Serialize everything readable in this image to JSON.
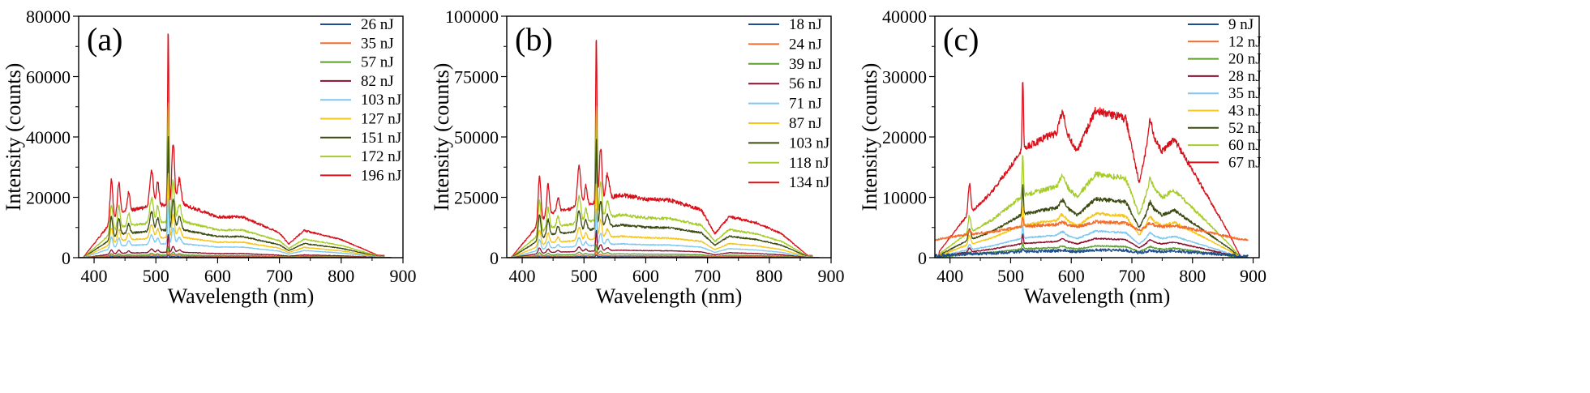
{
  "chart_data": [
    {
      "type": "line",
      "panel_label": "(a)",
      "xlabel": "Wavelength (nm)",
      "ylabel": "Intensity (counts)",
      "xlim": [
        375,
        900
      ],
      "ylim": [
        0,
        80000
      ],
      "xticks": [
        "400",
        "500",
        "600",
        "700",
        "800",
        "900"
      ],
      "yticks": [
        "0",
        "20000",
        "40000",
        "60000",
        "80000"
      ],
      "legend_position": "top-right",
      "series": [
        {
          "name": "26 nJ",
          "color": "#1f4e8c",
          "scale": 0.012,
          "noise": 0.3
        },
        {
          "name": "35 nJ",
          "color": "#f26c2c",
          "scale": 0.03,
          "noise": 0.3
        },
        {
          "name": "57 nJ",
          "color": "#5c9e2e",
          "scale": 0.05,
          "noise": 0.3
        },
        {
          "name": "82 nJ",
          "color": "#8b0f2e",
          "scale": 0.1,
          "noise": 0.3
        },
        {
          "name": "103 nJ",
          "color": "#7ec8f0",
          "scale": 0.26,
          "noise": 0.3
        },
        {
          "name": "127 nJ",
          "color": "#f5c518",
          "scale": 0.38,
          "noise": 0.3
        },
        {
          "name": "151 nJ",
          "color": "#3b4a10",
          "scale": 0.52,
          "noise": 0.3
        },
        {
          "name": "172 nJ",
          "color": "#a6cc2a",
          "scale": 0.68,
          "noise": 0.3
        },
        {
          "name": "196 nJ",
          "color": "#d9101a",
          "scale": 1.0,
          "noise": 0.3
        }
      ],
      "profile": {
        "start": 382,
        "end": 870,
        "base": 15000,
        "rise_end": 440,
        "segments": [
          [
            440,
            1.0
          ],
          [
            500,
            1.15
          ],
          [
            540,
            1.2
          ],
          [
            600,
            0.9
          ],
          [
            640,
            0.9
          ],
          [
            700,
            0.55
          ],
          [
            715,
            0.3
          ],
          [
            740,
            0.6
          ],
          [
            800,
            0.4
          ],
          [
            860,
            0.05
          ]
        ],
        "peaks": [
          [
            428,
            14000,
            3
          ],
          [
            440,
            10000,
            3
          ],
          [
            456,
            6000,
            3
          ],
          [
            493,
            12000,
            4
          ],
          [
            503,
            8000,
            3
          ],
          [
            520,
            58000,
            1.5
          ],
          [
            528,
            20000,
            3
          ],
          [
            538,
            8000,
            4
          ]
        ]
      }
    },
    {
      "type": "line",
      "panel_label": "(b)",
      "xlabel": "Wavelength (nm)",
      "ylabel": "Intensity (counts)",
      "xlim": [
        375,
        900
      ],
      "ylim": [
        0,
        100000
      ],
      "xticks": [
        "400",
        "500",
        "600",
        "700",
        "800",
        "900"
      ],
      "yticks": [
        "0",
        "25000",
        "50000",
        "75000",
        "100000"
      ],
      "legend_position": "top-right",
      "series": [
        {
          "name": "18 nJ",
          "color": "#1f4e8c",
          "scale": 0.012,
          "noise": 0.3
        },
        {
          "name": "24 nJ",
          "color": "#f26c2c",
          "scale": 0.03,
          "noise": 0.3
        },
        {
          "name": "39 nJ",
          "color": "#5c9e2e",
          "scale": 0.06,
          "noise": 0.3
        },
        {
          "name": "56 nJ",
          "color": "#8b0f2e",
          "scale": 0.12,
          "noise": 0.3
        },
        {
          "name": "71 nJ",
          "color": "#7ec8f0",
          "scale": 0.22,
          "noise": 0.3
        },
        {
          "name": "87 nJ",
          "color": "#f5c518",
          "scale": 0.34,
          "noise": 0.3
        },
        {
          "name": "103 nJ",
          "color": "#3b4a10",
          "scale": 0.52,
          "noise": 0.3
        },
        {
          "name": "118 nJ",
          "color": "#a6cc2a",
          "scale": 0.68,
          "noise": 0.3
        },
        {
          "name": "134 nJ",
          "color": "#d9101a",
          "scale": 1.0,
          "noise": 0.3
        }
      ],
      "profile": {
        "start": 382,
        "end": 870,
        "base": 18000,
        "rise_end": 440,
        "segments": [
          [
            440,
            1.0
          ],
          [
            500,
            1.2
          ],
          [
            560,
            1.45
          ],
          [
            600,
            1.35
          ],
          [
            640,
            1.32
          ],
          [
            690,
            1.1
          ],
          [
            712,
            0.55
          ],
          [
            735,
            0.95
          ],
          [
            780,
            0.8
          ],
          [
            820,
            0.55
          ],
          [
            862,
            0.05
          ]
        ],
        "peaks": [
          [
            428,
            20000,
            3
          ],
          [
            442,
            12000,
            3
          ],
          [
            458,
            6000,
            3
          ],
          [
            492,
            16000,
            4
          ],
          [
            503,
            8000,
            3
          ],
          [
            520,
            70000,
            1.5
          ],
          [
            527,
            22000,
            3
          ],
          [
            538,
            10000,
            4
          ]
        ]
      }
    },
    {
      "type": "line",
      "panel_label": "(c)",
      "xlabel": "Wavelength (nm)",
      "ylabel": "Intensity (counts)",
      "xlim": [
        375,
        910
      ],
      "ylim": [
        0,
        40000
      ],
      "xticks": [
        "400",
        "500",
        "600",
        "700",
        "800",
        "900"
      ],
      "yticks": [
        "0",
        "10000",
        "20000",
        "30000",
        "40000"
      ],
      "legend_position": "top-right",
      "series": [
        {
          "name": "9 nJ",
          "color": "#1f4e8c",
          "scale": 0.04,
          "noise": 0.8,
          "floor": 300
        },
        {
          "name": "12 nJ",
          "color": "#f26c2c",
          "scale": 0.12,
          "noise": 0.4,
          "floor": 3000
        },
        {
          "name": "20 nJ",
          "color": "#5c9e2e",
          "scale": 0.08,
          "noise": 0.4
        },
        {
          "name": "28 nJ",
          "color": "#8b0f2e",
          "scale": 0.13,
          "noise": 0.3
        },
        {
          "name": "35 nJ",
          "color": "#7ec8f0",
          "scale": 0.18,
          "noise": 0.3
        },
        {
          "name": "43 nJ",
          "color": "#f5c518",
          "scale": 0.3,
          "noise": 0.3
        },
        {
          "name": "52 nJ",
          "color": "#3b4a10",
          "scale": 0.4,
          "noise": 0.3
        },
        {
          "name": "60 nJ",
          "color": "#a6cc2a",
          "scale": 0.57,
          "noise": 0.3
        },
        {
          "name": "67 nJ",
          "color": "#d9101a",
          "scale": 1.0,
          "noise": 0.25
        }
      ],
      "profile": {
        "start": 382,
        "end": 880,
        "base": 20000,
        "rise_end": 520,
        "segments": [
          [
            382,
            0.05
          ],
          [
            420,
            0.3
          ],
          [
            470,
            0.55
          ],
          [
            520,
            0.9
          ],
          [
            560,
            1.0
          ],
          [
            590,
            1.05
          ],
          [
            610,
            0.88
          ],
          [
            640,
            1.22
          ],
          [
            690,
            1.15
          ],
          [
            712,
            0.62
          ],
          [
            730,
            1.05
          ],
          [
            750,
            0.88
          ],
          [
            770,
            0.98
          ],
          [
            820,
            0.55
          ],
          [
            860,
            0.2
          ],
          [
            878,
            0.02
          ]
        ],
        "peaks": [
          [
            520,
            12000,
            1.5
          ],
          [
            432,
            5000,
            3
          ],
          [
            585,
            3000,
            6
          ],
          [
            730,
            2000,
            5
          ]
        ]
      }
    }
  ]
}
